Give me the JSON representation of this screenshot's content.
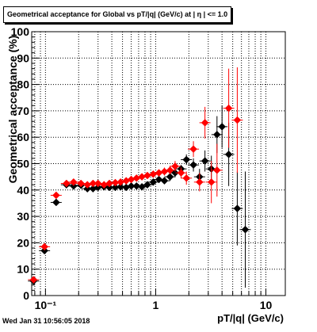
{
  "chart_data": {
    "type": "scatter",
    "title": "Geometrical acceptance for Global vs pT/|q| (GeV/c) at | η | <= 1.0",
    "xlabel": "pT/|q| (GeV/c)",
    "ylabel": "Geometrical acceptance (%)",
    "xscale": "log",
    "xlim": [
      0.075,
      15
    ],
    "ylim": [
      0,
      100
    ],
    "grid": true,
    "x_ticks": [
      {
        "value": 0.1,
        "label": "10⁻¹"
      },
      {
        "value": 1,
        "label": "1"
      },
      {
        "value": 10,
        "label": "10"
      }
    ],
    "y_ticks": [
      0,
      10,
      20,
      30,
      40,
      50,
      60,
      70,
      80,
      90,
      100
    ],
    "series": [
      {
        "color": "#000000",
        "marker": "diamond",
        "points": [
          {
            "x": 0.078,
            "y": 5.5,
            "ey": 1.0
          },
          {
            "x": 0.098,
            "y": 17.0,
            "ey": 1.2
          },
          {
            "x": 0.125,
            "y": 35.3,
            "ey": 1.2
          },
          {
            "x": 0.155,
            "y": 42.0,
            "ey": 1.0
          },
          {
            "x": 0.18,
            "y": 41.5,
            "ey": 1.0
          },
          {
            "x": 0.21,
            "y": 41.8,
            "ey": 1.0
          },
          {
            "x": 0.24,
            "y": 40.5,
            "ey": 1.0
          },
          {
            "x": 0.27,
            "y": 40.5,
            "ey": 1.0
          },
          {
            "x": 0.3,
            "y": 41.0,
            "ey": 1.0
          },
          {
            "x": 0.34,
            "y": 41.2,
            "ey": 1.0
          },
          {
            "x": 0.38,
            "y": 41.0,
            "ey": 1.0
          },
          {
            "x": 0.43,
            "y": 41.0,
            "ey": 1.0
          },
          {
            "x": 0.48,
            "y": 41.2,
            "ey": 1.0
          },
          {
            "x": 0.54,
            "y": 41.0,
            "ey": 1.0
          },
          {
            "x": 0.6,
            "y": 41.5,
            "ey": 1.0
          },
          {
            "x": 0.67,
            "y": 41.5,
            "ey": 1.0
          },
          {
            "x": 0.75,
            "y": 41.2,
            "ey": 1.0
          },
          {
            "x": 0.84,
            "y": 42.0,
            "ey": 1.2
          },
          {
            "x": 0.95,
            "y": 43.0,
            "ey": 1.2
          },
          {
            "x": 1.07,
            "y": 44.0,
            "ey": 1.2
          },
          {
            "x": 1.2,
            "y": 43.5,
            "ey": 1.2
          },
          {
            "x": 1.35,
            "y": 45.0,
            "ey": 1.5
          },
          {
            "x": 1.5,
            "y": 46.5,
            "ey": 1.5
          },
          {
            "x": 1.7,
            "y": 48.0,
            "ey": 1.5
          },
          {
            "x": 1.9,
            "y": 51.5,
            "ey": 2.0
          },
          {
            "x": 2.2,
            "y": 49.5,
            "ey": 2.5
          },
          {
            "x": 2.5,
            "y": 45.0,
            "ey": 3.0
          },
          {
            "x": 2.8,
            "y": 51.0,
            "ey": 4.0
          },
          {
            "x": 3.2,
            "y": 48.0,
            "ey": 5.0
          },
          {
            "x": 3.6,
            "y": 61.0,
            "ey": 7.0
          },
          {
            "x": 4.0,
            "y": 64.0,
            "ey": 8.0
          },
          {
            "x": 4.6,
            "y": 53.5,
            "ey": 12.0
          },
          {
            "x": 5.5,
            "y": 33.0,
            "ey": 14.0
          },
          {
            "x": 6.5,
            "y": 25.0,
            "ey": 22.0
          }
        ]
      },
      {
        "color": "#ff0000",
        "marker": "diamond",
        "points": [
          {
            "x": 0.078,
            "y": 6.0,
            "ey": 1.0
          },
          {
            "x": 0.098,
            "y": 18.5,
            "ey": 1.2
          },
          {
            "x": 0.125,
            "y": 38.0,
            "ey": 1.2
          },
          {
            "x": 0.155,
            "y": 42.5,
            "ey": 1.0
          },
          {
            "x": 0.18,
            "y": 43.0,
            "ey": 1.0
          },
          {
            "x": 0.21,
            "y": 42.5,
            "ey": 1.0
          },
          {
            "x": 0.24,
            "y": 42.0,
            "ey": 1.0
          },
          {
            "x": 0.27,
            "y": 42.5,
            "ey": 1.0
          },
          {
            "x": 0.3,
            "y": 42.5,
            "ey": 1.0
          },
          {
            "x": 0.34,
            "y": 42.0,
            "ey": 1.0
          },
          {
            "x": 0.38,
            "y": 42.5,
            "ey": 1.0
          },
          {
            "x": 0.43,
            "y": 42.8,
            "ey": 1.0
          },
          {
            "x": 0.48,
            "y": 43.0,
            "ey": 1.0
          },
          {
            "x": 0.54,
            "y": 43.5,
            "ey": 1.0
          },
          {
            "x": 0.6,
            "y": 44.0,
            "ey": 1.0
          },
          {
            "x": 0.67,
            "y": 44.5,
            "ey": 1.0
          },
          {
            "x": 0.75,
            "y": 45.0,
            "ey": 1.0
          },
          {
            "x": 0.84,
            "y": 45.5,
            "ey": 1.2
          },
          {
            "x": 0.95,
            "y": 46.0,
            "ey": 1.2
          },
          {
            "x": 1.07,
            "y": 46.5,
            "ey": 1.2
          },
          {
            "x": 1.2,
            "y": 47.0,
            "ey": 1.5
          },
          {
            "x": 1.35,
            "y": 47.5,
            "ey": 1.5
          },
          {
            "x": 1.5,
            "y": 49.0,
            "ey": 2.0
          },
          {
            "x": 1.7,
            "y": 46.5,
            "ey": 2.0
          },
          {
            "x": 1.9,
            "y": 44.5,
            "ey": 2.5
          },
          {
            "x": 2.2,
            "y": 55.5,
            "ey": 3.0
          },
          {
            "x": 2.5,
            "y": 43.0,
            "ey": 3.5
          },
          {
            "x": 2.8,
            "y": 65.5,
            "ey": 6.0
          },
          {
            "x": 3.2,
            "y": 43.0,
            "ey": 8.0
          },
          {
            "x": 3.6,
            "y": 47.5,
            "ey": 10.0
          },
          {
            "x": 4.6,
            "y": 71.0,
            "ey": 15.0
          },
          {
            "x": 5.5,
            "y": 66.5,
            "ey": 20.0
          }
        ]
      }
    ]
  },
  "footer": {
    "timestamp": "Wed Jan 31 10:56:05 2018"
  }
}
